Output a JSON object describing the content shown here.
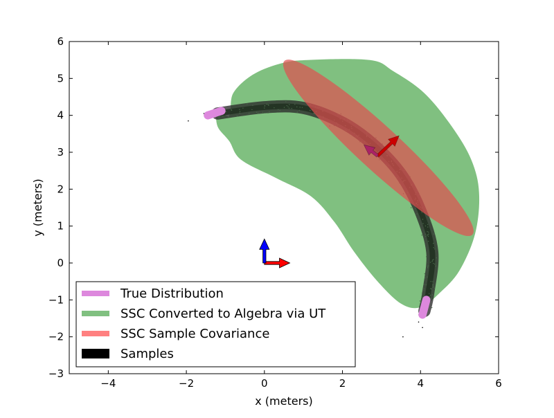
{
  "chart_data": {
    "type": "scatter",
    "title": "",
    "xlabel": "x (meters)",
    "ylabel": "y (meters)",
    "xlim": [
      -5,
      6
    ],
    "ylim": [
      -3,
      6
    ],
    "xticks": [
      -4,
      -2,
      0,
      2,
      4,
      6
    ],
    "yticks": [
      -3,
      -2,
      -1,
      0,
      1,
      2,
      3,
      4,
      5,
      6
    ],
    "xtick_labels": [
      "−4",
      "−2",
      "0",
      "2",
      "4",
      "6"
    ],
    "ytick_labels": [
      "−3",
      "−2",
      "−1",
      "0",
      "1",
      "2",
      "3",
      "4",
      "5",
      "6"
    ],
    "grid": false,
    "legend": {
      "placement": "lower-left",
      "entries": [
        {
          "label": "True Distribution",
          "color": "#dd88dd"
        },
        {
          "label": "SSC Converted to Algebra via UT",
          "color": "#80c080"
        },
        {
          "label": "SSC Sample Covariance",
          "color": "#ff8080"
        },
        {
          "label": "Samples",
          "color": "#000000"
        }
      ]
    },
    "series": [
      {
        "name": "SSC Converted to Algebra via UT",
        "kind": "region",
        "color": "#80c080",
        "polygon": [
          [
            -0.9,
            4.0
          ],
          [
            -1.2,
            4.1
          ],
          [
            -1.2,
            3.7
          ],
          [
            -0.9,
            3.3
          ],
          [
            -0.6,
            2.8
          ],
          [
            0.3,
            2.3
          ],
          [
            1.2,
            1.8
          ],
          [
            1.8,
            1.1
          ],
          [
            2.3,
            0.3
          ],
          [
            2.9,
            -0.5
          ],
          [
            3.5,
            -1.1
          ],
          [
            4.0,
            -1.2
          ],
          [
            4.5,
            -0.8
          ],
          [
            5.0,
            -0.2
          ],
          [
            5.4,
            0.8
          ],
          [
            5.5,
            1.9
          ],
          [
            5.3,
            2.8
          ],
          [
            4.8,
            3.7
          ],
          [
            4.1,
            4.6
          ],
          [
            3.3,
            5.2
          ],
          [
            2.7,
            5.5
          ],
          [
            1.1,
            5.5
          ],
          [
            0.4,
            5.4
          ],
          [
            -0.3,
            5.1
          ],
          [
            -0.8,
            4.6
          ]
        ]
      },
      {
        "name": "SSC Sample Covariance",
        "kind": "ellipse",
        "color": "#e05050",
        "center": [
          2.92,
          3.12
        ],
        "semi_axes": [
          3.28,
          0.55
        ],
        "angle_deg": -42.7
      },
      {
        "name": "Samples",
        "kind": "band",
        "color": "#2a2a2a",
        "centerline": [
          [
            -1.2,
            4.05
          ],
          [
            0.0,
            4.22
          ],
          [
            1.0,
            4.2
          ],
          [
            2.0,
            3.8
          ],
          [
            2.8,
            3.2
          ],
          [
            3.5,
            2.4
          ],
          [
            4.0,
            1.4
          ],
          [
            4.3,
            0.3
          ],
          [
            4.2,
            -0.8
          ],
          [
            4.1,
            -1.3
          ]
        ],
        "width": 0.33
      },
      {
        "name": "True Distribution",
        "kind": "band",
        "color": "#dd88dd",
        "segments": [
          {
            "centerline": [
              [
                -1.45,
                4.0
              ],
              [
                -1.1,
                4.12
              ]
            ],
            "width": 0.22
          },
          {
            "centerline": [
              [
                4.15,
                -1.0
              ],
              [
                4.05,
                -1.4
              ]
            ],
            "width": 0.22
          }
        ]
      }
    ],
    "pose_arrows": [
      {
        "name": "origin x-axis",
        "color": "#ff0000",
        "from": [
          0.0,
          0.0
        ],
        "to": [
          0.65,
          0.0
        ]
      },
      {
        "name": "origin y-axis",
        "color": "#0000ff",
        "from": [
          0.0,
          0.0
        ],
        "to": [
          0.0,
          0.65
        ]
      },
      {
        "name": "mean pose x-axis",
        "color": "#cc0000",
        "from": [
          2.9,
          2.9
        ],
        "to": [
          3.45,
          3.45
        ]
      },
      {
        "name": "mean pose y-axis",
        "color": "#aa2266",
        "from": [
          2.9,
          2.9
        ],
        "to": [
          2.55,
          3.2
        ]
      }
    ]
  }
}
